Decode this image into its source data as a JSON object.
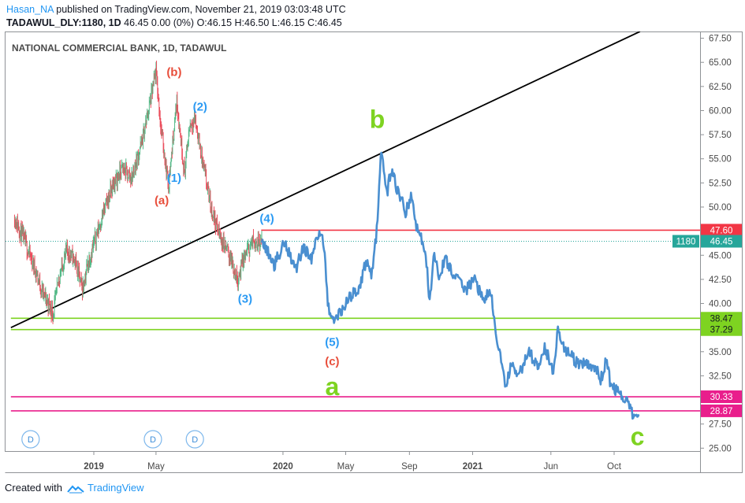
{
  "header": {
    "author": "Hasan_NA",
    "published": "published on TradingView.com, November 21, 2019 03:03:48 UTC",
    "symbol": "TADAWUL_DLY:1180, 1D",
    "price_change": "46.45 0.00 (0%)",
    "ohlc": "O:46.15 H:46.50 L:46.15 C:46.45"
  },
  "footer": {
    "created_with": "Created with",
    "brand": "TradingView"
  },
  "colors": {
    "candle_up": "#53b987",
    "candle_down": "#eb4d5c",
    "projection": "#4a8fd0",
    "trendline": "#000000",
    "red_level": "#f23645",
    "green_level": "#7ed321",
    "magenta_level": "#e91e8c",
    "price_tag": "#26a69a",
    "wave_red": "#e84e3b",
    "wave_blue": "#2b9af3",
    "wave_green": "#7ed321"
  },
  "chart_data": {
    "type": "line",
    "title": "NATIONAL COMMERCIAL BANK, 1D, TADAWUL",
    "y_ticks": [
      "67.50",
      "65.00",
      "62.50",
      "60.00",
      "57.50",
      "55.00",
      "52.50",
      "50.00",
      "47.50",
      "45.00",
      "42.50",
      "40.00",
      "37.50",
      "35.00",
      "32.50",
      "30.00",
      "27.50",
      "25.00"
    ],
    "ylim": [
      24.7,
      68.2
    ],
    "x_ticks": [
      {
        "label": "2019",
        "bold": true,
        "x": "2019-01-01"
      },
      {
        "label": "May",
        "bold": false,
        "x": "2019-05-01"
      },
      {
        "label": "2020",
        "bold": true,
        "x": "2020-01-01"
      },
      {
        "label": "May",
        "bold": false,
        "x": "2020-05-01"
      },
      {
        "label": "Sep",
        "bold": false,
        "x": "2020-09-01"
      },
      {
        "label": "2021",
        "bold": true,
        "x": "2021-01-01"
      },
      {
        "label": "Jun",
        "bold": false,
        "x": "2021-06-01"
      },
      {
        "label": "Oct",
        "bold": false,
        "x": "2021-10-01"
      }
    ],
    "price_series": {
      "name": "price",
      "points": [
        [
          "2018-08-01",
          48.9
        ],
        [
          "2018-08-20",
          46.5
        ],
        [
          "2018-09-10",
          43.5
        ],
        [
          "2018-09-25",
          41.0
        ],
        [
          "2018-10-15",
          39.0
        ],
        [
          "2018-10-25",
          42.5
        ],
        [
          "2018-11-10",
          45.5
        ],
        [
          "2018-11-25",
          44.5
        ],
        [
          "2018-12-10",
          41.5
        ],
        [
          "2018-12-20",
          44.0
        ],
        [
          "2018-12-31",
          46.0
        ],
        [
          "2019-01-20",
          49.5
        ],
        [
          "2019-02-05",
          52.0
        ],
        [
          "2019-02-25",
          54.0
        ],
        [
          "2019-03-15",
          53.0
        ],
        [
          "2019-04-05",
          57.0
        ],
        [
          "2019-04-20",
          61.0
        ],
        [
          "2019-05-01",
          64.0
        ],
        [
          "2019-05-10",
          58.5
        ],
        [
          "2019-05-25",
          52.2
        ],
        [
          "2019-06-10",
          61.0
        ],
        [
          "2019-06-25",
          53.5
        ],
        [
          "2019-07-05",
          58.5
        ],
        [
          "2019-07-15",
          59.2
        ],
        [
          "2019-08-01",
          54.0
        ],
        [
          "2019-08-15",
          50.0
        ],
        [
          "2019-09-01",
          47.0
        ],
        [
          "2019-09-20",
          45.0
        ],
        [
          "2019-10-05",
          42.5
        ],
        [
          "2019-10-20",
          45.0
        ],
        [
          "2019-11-05",
          46.5
        ],
        [
          "2019-11-21",
          46.45
        ]
      ]
    },
    "projection_series": {
      "name": "projection",
      "points": [
        [
          "2019-11-21",
          46.5
        ],
        [
          "2019-12-15",
          44.0
        ],
        [
          "2020-01-05",
          46.5
        ],
        [
          "2020-01-25",
          43.5
        ],
        [
          "2020-02-10",
          46.0
        ],
        [
          "2020-02-25",
          44.5
        ],
        [
          "2020-03-10",
          47.5
        ],
        [
          "2020-03-20",
          46.0
        ],
        [
          "2020-03-28",
          40.0
        ],
        [
          "2020-04-05",
          38.0
        ],
        [
          "2020-04-25",
          39.5
        ],
        [
          "2020-05-15",
          41.0
        ],
        [
          "2020-05-30",
          42.0
        ],
        [
          "2020-06-10",
          44.5
        ],
        [
          "2020-06-20",
          43.0
        ],
        [
          "2020-07-01",
          48.0
        ],
        [
          "2020-07-08",
          55.6
        ],
        [
          "2020-07-20",
          51.5
        ],
        [
          "2020-07-28",
          54.0
        ],
        [
          "2020-08-10",
          51.5
        ],
        [
          "2020-08-25",
          49.5
        ],
        [
          "2020-09-05",
          51.0
        ],
        [
          "2020-09-15",
          48.0
        ],
        [
          "2020-09-25",
          46.5
        ],
        [
          "2020-10-05",
          44.0
        ],
        [
          "2020-10-10",
          39.8
        ],
        [
          "2020-10-18",
          45.5
        ],
        [
          "2020-10-28",
          43.0
        ],
        [
          "2020-11-10",
          44.5
        ],
        [
          "2020-12-01",
          42.5
        ],
        [
          "2020-12-20",
          41.5
        ],
        [
          "2021-01-05",
          42.5
        ],
        [
          "2021-01-20",
          40.5
        ],
        [
          "2021-02-05",
          41.0
        ],
        [
          "2021-02-15",
          37.0
        ],
        [
          "2021-02-25",
          34.0
        ],
        [
          "2021-03-05",
          31.2
        ],
        [
          "2021-03-15",
          33.5
        ],
        [
          "2021-03-30",
          32.5
        ],
        [
          "2021-04-20",
          35.0
        ],
        [
          "2021-05-05",
          33.5
        ],
        [
          "2021-05-20",
          35.5
        ],
        [
          "2021-06-05",
          33.0
        ],
        [
          "2021-06-15",
          37.5
        ],
        [
          "2021-06-25",
          35.5
        ],
        [
          "2021-07-10",
          34.5
        ],
        [
          "2021-07-25",
          33.5
        ],
        [
          "2021-08-10",
          33.8
        ],
        [
          "2021-08-25",
          33.5
        ],
        [
          "2021-09-05",
          32.0
        ],
        [
          "2021-09-15",
          34.0
        ],
        [
          "2021-09-25",
          31.5
        ],
        [
          "2021-10-10",
          30.8
        ],
        [
          "2021-10-20",
          29.5
        ],
        [
          "2021-10-28",
          30.2
        ],
        [
          "2021-11-05",
          28.5
        ],
        [
          "2021-11-12",
          28.8
        ],
        [
          "2021-11-18",
          27.8
        ]
      ]
    },
    "trendline": {
      "points": [
        [
          "2018-07-25",
          37.5
        ],
        [
          "2021-11-20",
          68.2
        ]
      ]
    },
    "hlines": [
      {
        "value": 47.6,
        "label": "47.60",
        "style": "red",
        "x_start": "2019-11-20"
      },
      {
        "value": 38.47,
        "label": "38.47",
        "style": "green",
        "x_start": "2018-07-25"
      },
      {
        "value": 37.29,
        "label": "37.29",
        "style": "green",
        "x_start": "2018-07-25"
      },
      {
        "value": 30.33,
        "label": "30.33",
        "style": "magenta",
        "x_start": "2018-07-25"
      },
      {
        "value": 28.87,
        "label": "28.87",
        "style": "magenta",
        "x_start": "2018-07-25"
      }
    ],
    "last_price": {
      "symbol": "1180",
      "value": "46.45",
      "raw": 46.45
    },
    "wave_labels": [
      {
        "text": "(b)",
        "style": "red",
        "x": "2019-06-05",
        "y": 63.6
      },
      {
        "text": "(2)",
        "style": "blue",
        "x": "2019-07-25",
        "y": 60.0
      },
      {
        "text": "(1)",
        "style": "blue",
        "x": "2019-06-05",
        "y": 52.6
      },
      {
        "text": "(a)",
        "style": "red",
        "x": "2019-05-12",
        "y": 50.3
      },
      {
        "text": "(3)",
        "style": "blue",
        "x": "2019-10-20",
        "y": 40.1
      },
      {
        "text": "(4)",
        "style": "blue",
        "x": "2019-12-01",
        "y": 48.4
      },
      {
        "text": "(5)",
        "style": "blue",
        "x": "2020-04-05",
        "y": 35.6
      },
      {
        "text": "(c)",
        "style": "red",
        "x": "2020-04-05",
        "y": 33.6
      },
      {
        "text": "a",
        "style": "green_big",
        "x": "2020-04-05",
        "y": 30.5
      },
      {
        "text": "b",
        "style": "green_big",
        "x": "2020-07-01",
        "y": 58.2
      },
      {
        "text": "c",
        "style": "green_big",
        "x": "2021-11-15",
        "y": 25.3
      }
    ],
    "dividend_markers": [
      {
        "text": "D",
        "x": "2018-09-01"
      },
      {
        "text": "D",
        "x": "2019-04-25"
      },
      {
        "text": "D",
        "x": "2019-07-15"
      }
    ]
  }
}
